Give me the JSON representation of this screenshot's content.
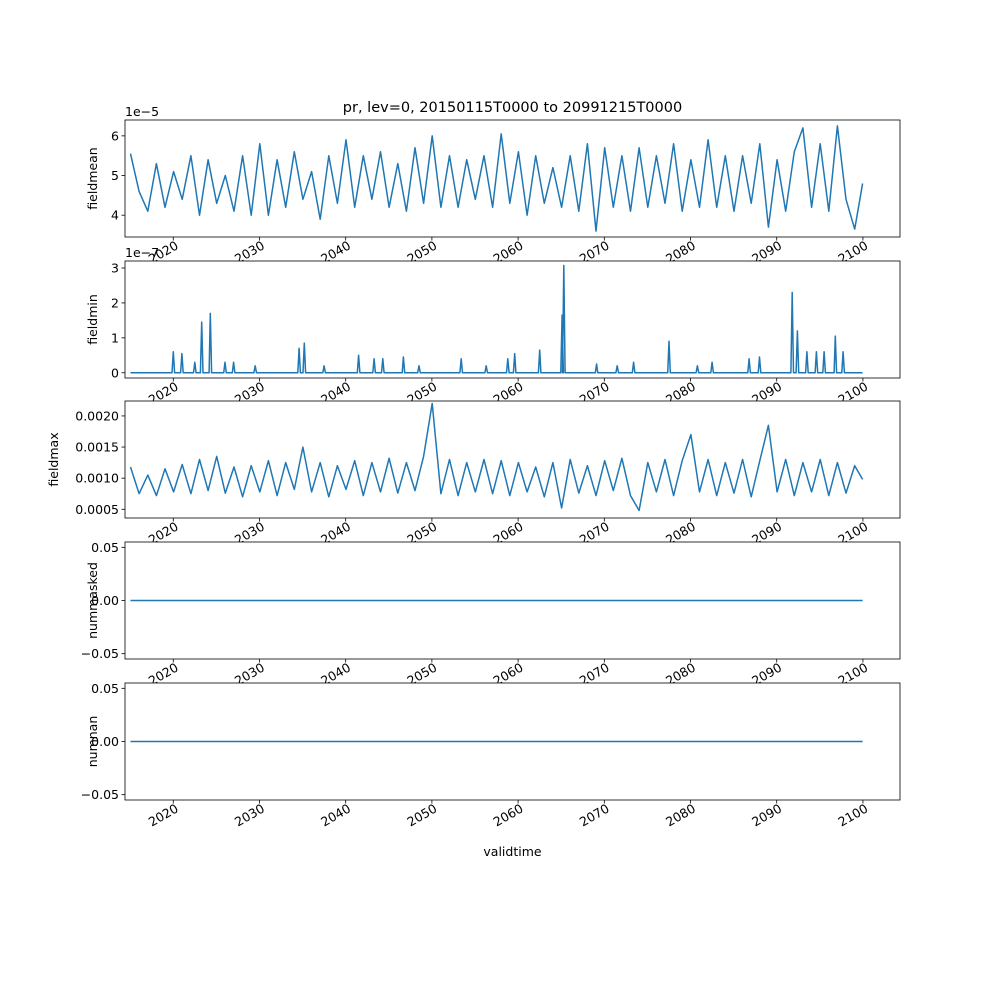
{
  "figure": {
    "title": "pr, lev=0, 20150115T0000 to 20991215T0000",
    "xlabel": "validtime",
    "x_ticks": [
      "2020",
      "2030",
      "2040",
      "2050",
      "2060",
      "2070",
      "2080",
      "2090",
      "2100"
    ],
    "line_color": "#1f77b4"
  },
  "chart_data": [
    {
      "type": "line",
      "ylabel": "fieldmean",
      "offset_text": "1e−5",
      "x_range": [
        "2015-01-15",
        "2099-12-15"
      ],
      "xlim": [
        2014.4,
        2104.3
      ],
      "ylim": [
        3.45e-05,
        6.4e-05
      ],
      "y_ticks": [
        4e-05,
        5e-05,
        6e-05
      ],
      "y_tick_labels": [
        "4",
        "5",
        "6"
      ],
      "x": [
        2015.04,
        2016.04,
        2017.04,
        2018.04,
        2019.04,
        2020.04,
        2021.04,
        2022.04,
        2023.04,
        2024.04,
        2025.04,
        2026.04,
        2027.04,
        2028.04,
        2029.04,
        2030.04,
        2031.04,
        2032.04,
        2033.04,
        2034.04,
        2035.04,
        2036.04,
        2037.04,
        2038.04,
        2039.04,
        2040.04,
        2041.04,
        2042.04,
        2043.04,
        2044.04,
        2045.04,
        2046.04,
        2047.04,
        2048.04,
        2049.04,
        2050.04,
        2051.04,
        2052.04,
        2053.04,
        2054.04,
        2055.04,
        2056.04,
        2057.04,
        2058.04,
        2059.04,
        2060.04,
        2061.04,
        2062.04,
        2063.04,
        2064.04,
        2065.04,
        2066.04,
        2067.04,
        2068.04,
        2069.04,
        2070.04,
        2071.04,
        2072.04,
        2073.04,
        2074.04,
        2075.04,
        2076.04,
        2077.04,
        2078.04,
        2079.04,
        2080.04,
        2081.04,
        2082.04,
        2083.04,
        2084.04,
        2085.04,
        2086.04,
        2087.04,
        2088.04,
        2089.04,
        2090.04,
        2091.04,
        2092.04,
        2093.04,
        2094.04,
        2095.04,
        2096.04,
        2097.04,
        2098.04,
        2099.04,
        2099.96
      ],
      "y": [
        5.55e-05,
        4.6e-05,
        4.1e-05,
        5.3e-05,
        4.2e-05,
        5.1e-05,
        4.4e-05,
        5.5e-05,
        4e-05,
        5.4e-05,
        4.3e-05,
        5e-05,
        4.1e-05,
        5.5e-05,
        4e-05,
        5.8e-05,
        4e-05,
        5.4e-05,
        4.2e-05,
        5.6e-05,
        4.4e-05,
        5.1e-05,
        3.9e-05,
        5.5e-05,
        4.3e-05,
        5.9e-05,
        4.2e-05,
        5.5e-05,
        4.4e-05,
        5.6e-05,
        4.2e-05,
        5.3e-05,
        4.1e-05,
        5.7e-05,
        4.3e-05,
        6e-05,
        4.2e-05,
        5.5e-05,
        4.2e-05,
        5.4e-05,
        4.4e-05,
        5.5e-05,
        4.2e-05,
        6.05e-05,
        4.3e-05,
        5.6e-05,
        4e-05,
        5.5e-05,
        4.3e-05,
        5.2e-05,
        4.2e-05,
        5.5e-05,
        4.1e-05,
        5.8e-05,
        3.6e-05,
        5.7e-05,
        4.2e-05,
        5.5e-05,
        4.1e-05,
        5.7e-05,
        4.2e-05,
        5.5e-05,
        4.3e-05,
        5.8e-05,
        4.1e-05,
        5.4e-05,
        4.2e-05,
        5.9e-05,
        4.2e-05,
        5.5e-05,
        4.1e-05,
        5.5e-05,
        4.3e-05,
        5.8e-05,
        3.7e-05,
        5.4e-05,
        4.1e-05,
        5.6e-05,
        6.2e-05,
        4.2e-05,
        5.8e-05,
        4.1e-05,
        6.25e-05,
        4.4e-05,
        3.65e-05,
        4.8e-05
      ]
    },
    {
      "type": "line",
      "ylabel": "fieldmin",
      "offset_text": "1e−7",
      "xlim": [
        2014.4,
        2104.3
      ],
      "ylim": [
        -1.5e-08,
        3.2e-07
      ],
      "y_ticks": [
        0,
        1e-07,
        2e-07,
        3e-07
      ],
      "y_tick_labels": [
        "0",
        "1",
        "2",
        "3"
      ],
      "baseline": 0,
      "spikes": [
        [
          2020.0,
          6e-08
        ],
        [
          2021.0,
          5.5e-08
        ],
        [
          2022.5,
          3e-08
        ],
        [
          2023.3,
          1.45e-07
        ],
        [
          2024.3,
          1.7e-07
        ],
        [
          2026.0,
          3e-08
        ],
        [
          2027.0,
          3e-08
        ],
        [
          2029.5,
          2e-08
        ],
        [
          2034.6,
          7e-08
        ],
        [
          2035.2,
          8.5e-08
        ],
        [
          2037.5,
          2e-08
        ],
        [
          2041.5,
          5e-08
        ],
        [
          2043.3,
          4e-08
        ],
        [
          2044.3,
          4e-08
        ],
        [
          2046.7,
          4.5e-08
        ],
        [
          2048.5,
          2e-08
        ],
        [
          2053.4,
          4e-08
        ],
        [
          2056.3,
          2e-08
        ],
        [
          2058.8,
          4e-08
        ],
        [
          2059.6,
          5.5e-08
        ],
        [
          2062.5,
          6.5e-08
        ],
        [
          2065.1,
          1.65e-07
        ],
        [
          2065.3,
          3.07e-07
        ],
        [
          2069.1,
          2.5e-08
        ],
        [
          2071.5,
          2e-08
        ],
        [
          2073.4,
          3e-08
        ],
        [
          2077.5,
          9e-08
        ],
        [
          2080.8,
          2e-08
        ],
        [
          2082.5,
          3e-08
        ],
        [
          2086.8,
          4e-08
        ],
        [
          2088.0,
          4.5e-08
        ],
        [
          2091.8,
          2.3e-07
        ],
        [
          2092.4,
          1.2e-07
        ],
        [
          2093.5,
          6e-08
        ],
        [
          2094.6,
          6e-08
        ],
        [
          2095.5,
          6e-08
        ],
        [
          2096.8,
          1.05e-07
        ],
        [
          2097.7,
          6e-08
        ]
      ]
    },
    {
      "type": "line",
      "ylabel": "fieldmax",
      "xlim": [
        2014.4,
        2104.3
      ],
      "ylim": [
        0.00036,
        0.00224
      ],
      "y_ticks": [
        0.0005,
        0.001,
        0.0015,
        0.002
      ],
      "y_tick_labels": [
        "0.0005",
        "0.0010",
        "0.0015",
        "0.0020"
      ],
      "x": [
        2015.04,
        2016.04,
        2017.04,
        2018.04,
        2019.04,
        2020.04,
        2021.04,
        2022.04,
        2023.04,
        2024.04,
        2025.04,
        2026.04,
        2027.04,
        2028.04,
        2029.04,
        2030.04,
        2031.04,
        2032.04,
        2033.04,
        2034.04,
        2035.04,
        2036.04,
        2037.04,
        2038.04,
        2039.04,
        2040.04,
        2041.04,
        2042.04,
        2043.04,
        2044.04,
        2045.04,
        2046.04,
        2047.04,
        2048.04,
        2049.04,
        2050.04,
        2051.04,
        2052.04,
        2053.04,
        2054.04,
        2055.04,
        2056.04,
        2057.04,
        2058.04,
        2059.04,
        2060.04,
        2061.04,
        2062.04,
        2063.04,
        2064.04,
        2065.04,
        2066.04,
        2067.04,
        2068.04,
        2069.04,
        2070.04,
        2071.04,
        2072.04,
        2073.04,
        2074.04,
        2075.04,
        2076.04,
        2077.04,
        2078.04,
        2079.04,
        2080.04,
        2081.04,
        2082.04,
        2083.04,
        2084.04,
        2085.04,
        2086.04,
        2087.04,
        2088.04,
        2089.04,
        2090.04,
        2091.04,
        2092.04,
        2093.04,
        2094.04,
        2095.04,
        2096.04,
        2097.04,
        2098.04,
        2099.04,
        2099.96
      ],
      "y": [
        0.00118,
        0.00075,
        0.00105,
        0.00072,
        0.00115,
        0.00078,
        0.00122,
        0.00075,
        0.0013,
        0.0008,
        0.00135,
        0.00076,
        0.00118,
        0.0007,
        0.0012,
        0.00078,
        0.00128,
        0.00072,
        0.00125,
        0.00082,
        0.0015,
        0.00078,
        0.00125,
        0.0007,
        0.0012,
        0.00082,
        0.00128,
        0.00072,
        0.00125,
        0.00078,
        0.00132,
        0.00076,
        0.00125,
        0.0008,
        0.00135,
        0.0022,
        0.00075,
        0.0013,
        0.00072,
        0.00125,
        0.00078,
        0.0013,
        0.00075,
        0.00128,
        0.00072,
        0.00125,
        0.00078,
        0.00118,
        0.0007,
        0.00125,
        0.00052,
        0.0013,
        0.00076,
        0.0012,
        0.00072,
        0.00128,
        0.0008,
        0.00132,
        0.00072,
        0.00048,
        0.00125,
        0.00078,
        0.0013,
        0.00072,
        0.00128,
        0.0017,
        0.00078,
        0.0013,
        0.00072,
        0.00125,
        0.00076,
        0.0013,
        0.0007,
        0.00128,
        0.00185,
        0.00078,
        0.0013,
        0.00072,
        0.00125,
        0.00078,
        0.0013,
        0.00072,
        0.00125,
        0.00076,
        0.0012,
        0.00098
      ]
    },
    {
      "type": "line",
      "ylabel": "nummasked",
      "xlim": [
        2014.4,
        2104.3
      ],
      "ylim": [
        -0.055,
        0.055
      ],
      "y_ticks": [
        -0.05,
        0.0,
        0.05
      ],
      "y_tick_labels": [
        "−0.05",
        "0.00",
        "0.05"
      ],
      "x": [
        2015.04,
        2099.96
      ],
      "y": [
        0,
        0
      ]
    },
    {
      "type": "line",
      "ylabel": "numnan",
      "xlim": [
        2014.4,
        2104.3
      ],
      "ylim": [
        -0.055,
        0.055
      ],
      "y_ticks": [
        -0.05,
        0.0,
        0.05
      ],
      "y_tick_labels": [
        "−0.05",
        "0.00",
        "0.05"
      ],
      "x": [
        2015.04,
        2099.96
      ],
      "y": [
        0,
        0
      ]
    }
  ]
}
